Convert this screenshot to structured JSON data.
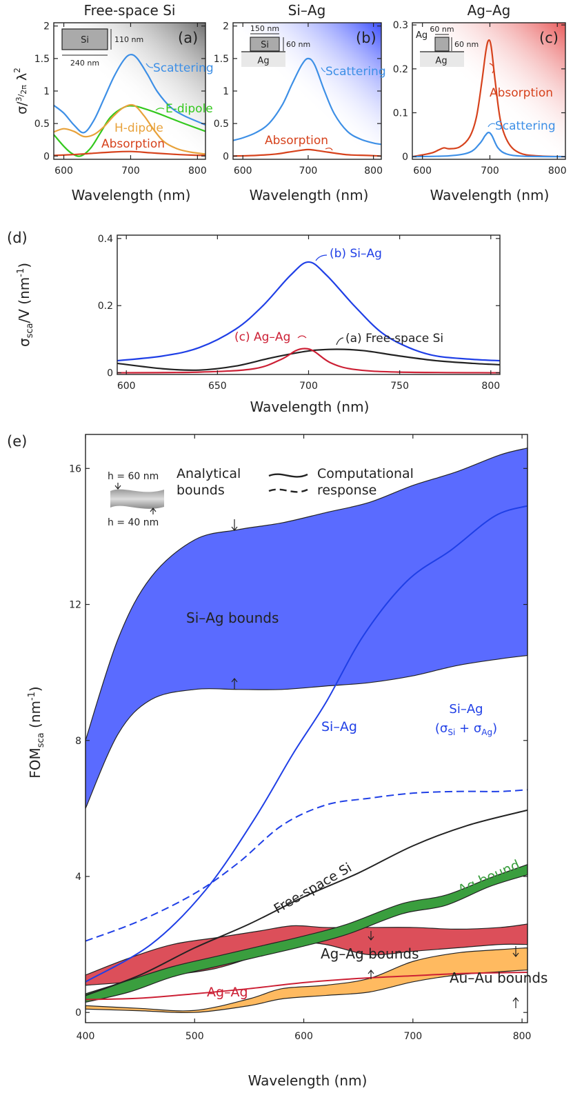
{
  "chart_data": [
    {
      "id": "a",
      "type": "line",
      "title": "Free-space Si",
      "panel_label": "(a)",
      "xlabel": "Wavelength (nm)",
      "ylabel": "σ/(3/2π)λ²",
      "xlim": [
        585,
        812
      ],
      "ylim": [
        -0.05,
        2.05
      ],
      "xticks": [
        "600",
        "700",
        "800"
      ],
      "yticks": [
        "0",
        "0.5",
        "1",
        "1.5",
        "2"
      ],
      "inset": {
        "material": "Si",
        "width": "240 nm",
        "height": "110 nm"
      },
      "series": [
        {
          "name": "Scattering",
          "color": "#3d8fe6",
          "x": [
            585,
            600,
            615,
            630,
            645,
            660,
            675,
            690,
            700,
            710,
            725,
            740,
            760,
            780,
            812
          ],
          "y": [
            0.78,
            0.66,
            0.48,
            0.36,
            0.55,
            0.88,
            1.22,
            1.48,
            1.56,
            1.5,
            1.26,
            0.99,
            0.75,
            0.62,
            0.48
          ]
        },
        {
          "name": "E-dipole",
          "color": "#33c81d",
          "x": [
            585,
            600,
            612,
            625,
            640,
            655,
            670,
            690,
            705,
            720,
            740,
            760,
            780,
            812
          ],
          "y": [
            0.33,
            0.15,
            0.04,
            0.0,
            0.12,
            0.36,
            0.6,
            0.75,
            0.77,
            0.73,
            0.66,
            0.58,
            0.5,
            0.38
          ]
        },
        {
          "name": "H-dipole",
          "color": "#e8a23b",
          "x": [
            585,
            600,
            615,
            630,
            645,
            660,
            675,
            690,
            705,
            720,
            735,
            750,
            770,
            790,
            812
          ],
          "y": [
            0.37,
            0.42,
            0.38,
            0.3,
            0.33,
            0.45,
            0.62,
            0.75,
            0.78,
            0.62,
            0.4,
            0.22,
            0.11,
            0.06,
            0.03
          ]
        },
        {
          "name": "Absorption",
          "color": "#d6421c",
          "x": [
            585,
            610,
            640,
            670,
            700,
            730,
            760,
            790,
            812
          ],
          "y": [
            0.01,
            0.02,
            0.04,
            0.06,
            0.07,
            0.05,
            0.03,
            0.015,
            0.01
          ]
        }
      ]
    },
    {
      "id": "b",
      "type": "line",
      "title": "Si–Ag",
      "panel_label": "(b)",
      "xlabel": "Wavelength (nm)",
      "xlim": [
        585,
        812
      ],
      "ylim": [
        -0.05,
        2.05
      ],
      "xticks": [
        "600",
        "700",
        "800"
      ],
      "yticks": [
        "0",
        "0.5",
        "1",
        "1.5",
        "2"
      ],
      "inset": {
        "material": "Si",
        "substrate": "Ag",
        "width": "150 nm",
        "height": "60 nm"
      },
      "series": [
        {
          "name": "Scattering",
          "color": "#3d8fe6",
          "x": [
            585,
            600,
            620,
            640,
            660,
            675,
            690,
            700,
            710,
            725,
            740,
            760,
            780,
            800,
            812
          ],
          "y": [
            0.24,
            0.28,
            0.36,
            0.5,
            0.78,
            1.1,
            1.4,
            1.5,
            1.4,
            1.0,
            0.65,
            0.38,
            0.26,
            0.2,
            0.18
          ]
        },
        {
          "name": "Absorption",
          "color": "#d6421c",
          "x": [
            585,
            620,
            650,
            670,
            690,
            700,
            710,
            730,
            760,
            790,
            812
          ],
          "y": [
            0.0,
            0.01,
            0.03,
            0.06,
            0.09,
            0.1,
            0.09,
            0.06,
            0.02,
            0.01,
            0.0
          ]
        }
      ]
    },
    {
      "id": "c",
      "type": "line",
      "title": "Ag–Ag",
      "panel_label": "(c)",
      "xlabel": "Wavelength (nm)",
      "xlim": [
        585,
        812
      ],
      "ylim": [
        -0.006,
        0.305
      ],
      "xticks": [
        "600",
        "700",
        "800"
      ],
      "yticks": [
        "0",
        "0.1",
        "0.2",
        "0.3"
      ],
      "inset": {
        "material": "Ag",
        "substrate": "Ag",
        "width": "60 nm",
        "height": "60 nm"
      },
      "series": [
        {
          "name": "Absorption",
          "color": "#d6421c",
          "x": [
            585,
            600,
            615,
            625,
            632,
            640,
            655,
            670,
            680,
            688,
            694,
            698,
            702,
            708,
            716,
            728,
            745,
            770,
            812
          ],
          "y": [
            0.0,
            0.004,
            0.009,
            0.016,
            0.02,
            0.018,
            0.022,
            0.045,
            0.09,
            0.17,
            0.24,
            0.265,
            0.25,
            0.17,
            0.08,
            0.03,
            0.008,
            0.002,
            0.0
          ]
        },
        {
          "name": "Scattering",
          "color": "#3d8fe6",
          "x": [
            585,
            640,
            670,
            685,
            693,
            698,
            703,
            712,
            725,
            750,
            812
          ],
          "y": [
            0.0,
            0.002,
            0.01,
            0.03,
            0.048,
            0.055,
            0.048,
            0.02,
            0.006,
            0.001,
            0.0
          ]
        }
      ]
    },
    {
      "id": "d",
      "type": "line",
      "panel_label": "(d)",
      "xlabel": "Wavelength (nm)",
      "ylabel": "σsca/V (nm-1)",
      "xlim": [
        595,
        805
      ],
      "ylim": [
        -0.005,
        0.41
      ],
      "xticks": [
        "600",
        "650",
        "700",
        "750",
        "800"
      ],
      "yticks": [
        "0",
        "0.2",
        "0.4"
      ],
      "series": [
        {
          "name": "(b) Si–Ag",
          "color": "#1f3fe6",
          "x": [
            595,
            620,
            640,
            660,
            675,
            690,
            700,
            710,
            725,
            740,
            755,
            770,
            790,
            805
          ],
          "y": [
            0.036,
            0.05,
            0.075,
            0.13,
            0.2,
            0.29,
            0.33,
            0.29,
            0.2,
            0.12,
            0.075,
            0.05,
            0.04,
            0.036
          ]
        },
        {
          "name": "(a) Free-space Si",
          "color": "#222222",
          "x": [
            595,
            620,
            640,
            660,
            680,
            700,
            715,
            730,
            750,
            770,
            790,
            805
          ],
          "y": [
            0.028,
            0.012,
            0.008,
            0.02,
            0.045,
            0.065,
            0.07,
            0.066,
            0.05,
            0.036,
            0.028,
            0.024
          ]
        },
        {
          "name": "(c) Ag–Ag",
          "color": "#cc1f34",
          "x": [
            595,
            640,
            670,
            685,
            693,
            698,
            703,
            712,
            725,
            750,
            805
          ],
          "y": [
            0.0,
            0.002,
            0.012,
            0.04,
            0.066,
            0.072,
            0.064,
            0.03,
            0.01,
            0.002,
            0.0
          ]
        }
      ]
    },
    {
      "id": "e",
      "type": "area",
      "panel_label": "(e)",
      "xlabel": "Wavelength (nm)",
      "ylabel": "FOMsca (nm-1)",
      "xlim": [
        400,
        805
      ],
      "ylim": [
        -0.3,
        17
      ],
      "xticks": [
        "400",
        "500",
        "600",
        "700",
        "800"
      ],
      "yticks": [
        "0",
        "4",
        "8",
        "12",
        "16"
      ],
      "legend": {
        "bounds_label": [
          "Analytical",
          "bounds"
        ],
        "response_label": [
          "Computational",
          "response"
        ],
        "h_upper": "h = 60 nm",
        "h_lower": "h = 40 nm"
      },
      "bands": [
        {
          "name": "Si–Ag bounds",
          "color": "#5a6bff",
          "x": [
            400,
            430,
            460,
            500,
            540,
            580,
            620,
            660,
            700,
            740,
            780,
            805
          ],
          "upper": [
            8.0,
            11.0,
            12.8,
            13.9,
            14.2,
            14.4,
            14.7,
            15.0,
            15.5,
            15.9,
            16.4,
            16.6
          ],
          "lower": [
            6.0,
            8.2,
            9.2,
            9.5,
            9.5,
            9.5,
            9.6,
            9.7,
            9.9,
            10.2,
            10.4,
            10.5
          ]
        },
        {
          "name": "Ag–Ag bounds",
          "color": "#d9404c",
          "x": [
            400,
            440,
            480,
            520,
            560,
            590,
            620,
            660,
            700,
            740,
            780,
            805
          ],
          "upper": [
            1.1,
            1.6,
            2.0,
            2.2,
            2.4,
            2.55,
            2.5,
            2.5,
            2.5,
            2.45,
            2.5,
            2.6
          ],
          "lower": [
            0.8,
            0.9,
            1.1,
            1.3,
            1.7,
            2.05,
            2.0,
            1.7,
            1.8,
            1.9,
            2.0,
            2.0
          ]
        },
        {
          "name": "Au–Au bounds",
          "color": "#ffb452",
          "x": [
            400,
            450,
            500,
            550,
            580,
            620,
            660,
            700,
            740,
            780,
            805
          ],
          "upper": [
            0.2,
            0.12,
            0.06,
            0.4,
            0.7,
            0.8,
            1.0,
            1.5,
            1.75,
            1.85,
            1.9
          ],
          "lower": [
            0.1,
            0.05,
            0.0,
            0.2,
            0.4,
            0.5,
            0.6,
            0.9,
            1.1,
            1.2,
            1.25
          ]
        },
        {
          "name": "Ag bound",
          "color": "#3a9e3e",
          "x": [
            400,
            440,
            480,
            520,
            560,
            600,
            640,
            690,
            730,
            770,
            805
          ],
          "upper": [
            0.55,
            0.95,
            1.35,
            1.65,
            1.95,
            2.25,
            2.6,
            3.2,
            3.45,
            3.95,
            4.35
          ],
          "lower": [
            0.3,
            0.6,
            1.05,
            1.35,
            1.65,
            1.95,
            2.3,
            2.9,
            3.15,
            3.7,
            4.05
          ]
        }
      ],
      "series": [
        {
          "name": "Si–Ag",
          "color": "#1f3fe6",
          "style": "solid",
          "x": [
            400,
            460,
            510,
            555,
            590,
            620,
            655,
            695,
            735,
            775,
            805
          ],
          "y": [
            0.9,
            2.0,
            3.6,
            5.7,
            7.6,
            9.1,
            11.1,
            12.7,
            13.6,
            14.6,
            14.9
          ]
        },
        {
          "name": "Si–Ag (σSi + σAg)",
          "color": "#1f3fe6",
          "style": "dashed",
          "x": [
            400,
            450,
            500,
            540,
            580,
            620,
            660,
            700,
            740,
            780,
            805
          ],
          "y": [
            2.1,
            2.7,
            3.5,
            4.4,
            5.5,
            6.1,
            6.3,
            6.45,
            6.5,
            6.5,
            6.55
          ]
        },
        {
          "name": "Free-space Si",
          "color": "#222222",
          "style": "solid",
          "x": [
            400,
            450,
            500,
            550,
            600,
            650,
            700,
            750,
            805
          ],
          "y": [
            0.5,
            1.1,
            1.9,
            2.6,
            3.4,
            4.1,
            4.9,
            5.5,
            5.95
          ]
        },
        {
          "name": "Ag–Ag",
          "color": "#cc1f34",
          "style": "solid",
          "x": [
            400,
            450,
            500,
            550,
            600,
            650,
            700,
            750,
            805
          ],
          "y": [
            0.38,
            0.42,
            0.55,
            0.7,
            0.88,
            1.0,
            1.08,
            1.15,
            1.18
          ]
        }
      ]
    }
  ]
}
